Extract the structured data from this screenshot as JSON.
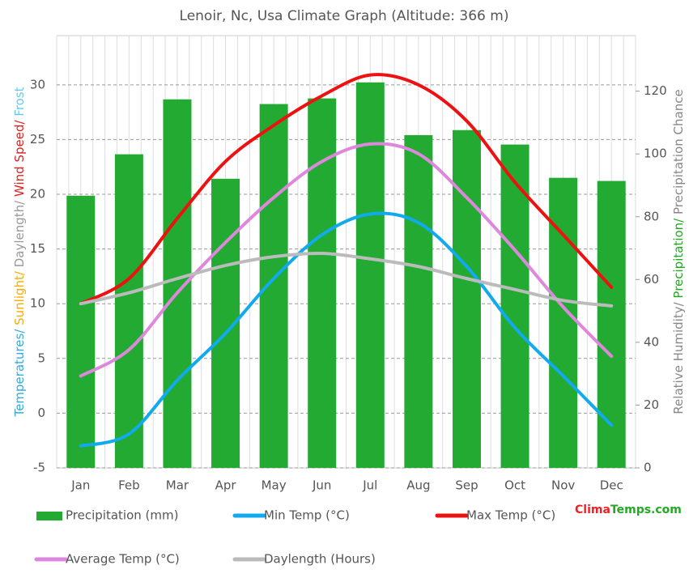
{
  "chart_data": {
    "type": "bar-line",
    "title": "Lenoir, Nc, Usa Climate Graph (Altitude: 366 m)",
    "y_label_parts": [
      {
        "text": "Temperatures/",
        "color": "#33aadd"
      },
      {
        "text": " Sunlight/",
        "color": "#ffaa00"
      },
      {
        "text": " Daylength/",
        "color": "#999999"
      },
      {
        "text": " Wind Speed/",
        "color": "#dd2222"
      },
      {
        "text": " Frost",
        "color": "#66ccee"
      }
    ],
    "y2_label_parts": [
      {
        "text": "Relative Humidity/",
        "color": "#888888"
      },
      {
        "text": " Precipitation/",
        "color": "#22aa22"
      },
      {
        "text": " Precipitation Chance",
        "color": "#888888"
      }
    ],
    "categories": [
      "Jan",
      "Feb",
      "Mar",
      "Apr",
      "May",
      "Jun",
      "Jul",
      "Aug",
      "Sep",
      "Oct",
      "Nov",
      "Dec"
    ],
    "ylim": [
      -5,
      34.5
    ],
    "yticks": [
      -5,
      0,
      5,
      10,
      15,
      20,
      25,
      30
    ],
    "y2lim": [
      0,
      137.7
    ],
    "y2ticks": [
      0,
      20,
      40,
      60,
      80,
      100,
      120
    ],
    "grid": true,
    "series": [
      {
        "name": "Precipitation (mm)",
        "kind": "bar",
        "axis": "y2",
        "color": "#22aa33",
        "values": [
          86.7,
          99.9,
          117.4,
          92.1,
          115.9,
          117.7,
          122.8,
          106,
          107.6,
          103,
          92.4,
          91.4
        ]
      },
      {
        "name": "Min Temp (°C)",
        "kind": "line",
        "color": "#11aaee",
        "values": [
          -3.0,
          -1.9,
          3.0,
          7.3,
          12.3,
          16.3,
          18.2,
          17.4,
          13.4,
          7.8,
          3.4,
          -1.1
        ]
      },
      {
        "name": "Max Temp (°C)",
        "kind": "line",
        "color": "#ee1111",
        "values": [
          10.0,
          12.3,
          17.8,
          23.0,
          26.3,
          29.0,
          30.9,
          30.0,
          26.7,
          21.1,
          16.3,
          11.5
        ]
      },
      {
        "name": "Average Temp (°C)",
        "kind": "line",
        "color": "#dd88dd",
        "values": [
          3.4,
          5.8,
          11.0,
          15.6,
          19.7,
          23.0,
          24.6,
          23.7,
          19.7,
          14.9,
          9.7,
          5.2
        ]
      },
      {
        "name": "Daylength (Hours)",
        "kind": "line",
        "color": "#bbbbbb",
        "values": [
          10.0,
          11.0,
          12.3,
          13.5,
          14.3,
          14.6,
          14.1,
          13.4,
          12.3,
          11.3,
          10.3,
          9.8
        ]
      }
    ],
    "brand_parts": [
      {
        "text": "Clima",
        "color": "#ee2222"
      },
      {
        "text": "Temps.com",
        "color": "#22aa22"
      }
    ]
  }
}
